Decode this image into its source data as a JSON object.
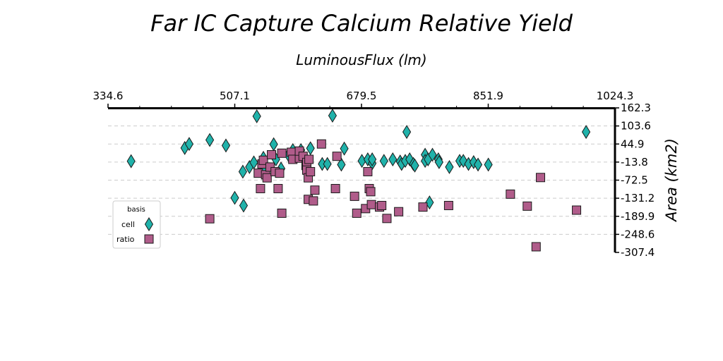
{
  "chart_data": {
    "type": "scatter",
    "title": "Far IC Capture Calcium Relative Yield",
    "xlabel": "LuminousFlux (lm)",
    "ylabel": "Area (km2)",
    "xlim": [
      334.6,
      1024.3
    ],
    "ylim": [
      -307.4,
      162.3
    ],
    "x_ticks": [
      "334.6",
      "507.1",
      "679.5",
      "851.9",
      "1024.3"
    ],
    "y_ticks": [
      "162.3",
      "103.6",
      "44.9",
      "-13.8",
      "-72.5",
      "-131.2",
      "-189.9",
      "-248.6",
      "-307.4"
    ],
    "x_axis_position": "top",
    "y_axis_position": "right",
    "grid": "horizontal dashed",
    "legend": {
      "title": "basis",
      "position": "left-middle"
    },
    "series": [
      {
        "name": "cell",
        "marker": "diamond",
        "color": "#20b2aa",
        "points": [
          [
            366,
            -11
          ],
          [
            439,
            32
          ],
          [
            445,
            45
          ],
          [
            473,
            58
          ],
          [
            495,
            40
          ],
          [
            507,
            -130
          ],
          [
            518,
            -45
          ],
          [
            519,
            -155
          ],
          [
            527,
            -30
          ],
          [
            533,
            -15
          ],
          [
            537,
            135
          ],
          [
            546,
            0
          ],
          [
            547,
            -33
          ],
          [
            560,
            44
          ],
          [
            563,
            -5
          ],
          [
            570,
            -35
          ],
          [
            580,
            9
          ],
          [
            586,
            25
          ],
          [
            597,
            25
          ],
          [
            610,
            31
          ],
          [
            626,
            -20
          ],
          [
            633,
            -20
          ],
          [
            640,
            137
          ],
          [
            652,
            -22
          ],
          [
            656,
            30
          ],
          [
            680,
            -10
          ],
          [
            688,
            -5
          ],
          [
            694,
            -18
          ],
          [
            694,
            -5
          ],
          [
            710,
            -10
          ],
          [
            722,
            -5
          ],
          [
            732,
            -12
          ],
          [
            734,
            -20
          ],
          [
            739,
            -10
          ],
          [
            741,
            84
          ],
          [
            745,
            -5
          ],
          [
            750,
            -20
          ],
          [
            752,
            -25
          ],
          [
            766,
            10
          ],
          [
            766,
            -10
          ],
          [
            770,
            -5
          ],
          [
            772,
            -145
          ],
          [
            776,
            10
          ],
          [
            784,
            -5
          ],
          [
            785,
            -14
          ],
          [
            799,
            -30
          ],
          [
            813,
            -10
          ],
          [
            818,
            -10
          ],
          [
            825,
            -20
          ],
          [
            832,
            -14
          ],
          [
            838,
            -22
          ],
          [
            852,
            -22
          ],
          [
            985,
            84
          ]
        ]
      },
      {
        "name": "ratio",
        "marker": "square",
        "color": "#b05c8a",
        "points": [
          [
            473,
            -198
          ],
          [
            539,
            -50
          ],
          [
            542,
            -100
          ],
          [
            544,
            -20
          ],
          [
            546,
            -8
          ],
          [
            549,
            -55
          ],
          [
            551,
            -65
          ],
          [
            555,
            -30
          ],
          [
            557,
            10
          ],
          [
            562,
            -45
          ],
          [
            566,
            -100
          ],
          [
            568,
            -50
          ],
          [
            571,
            15
          ],
          [
            571,
            -180
          ],
          [
            584,
            18
          ],
          [
            586,
            -5
          ],
          [
            595,
            -1
          ],
          [
            595,
            22
          ],
          [
            600,
            5
          ],
          [
            604,
            -25
          ],
          [
            605,
            -15
          ],
          [
            605,
            -40
          ],
          [
            607,
            -65
          ],
          [
            607,
            -135
          ],
          [
            608,
            -5
          ],
          [
            610,
            -45
          ],
          [
            614,
            -140
          ],
          [
            616,
            -105
          ],
          [
            625,
            45
          ],
          [
            644,
            -100
          ],
          [
            646,
            5
          ],
          [
            670,
            -125
          ],
          [
            673,
            -180
          ],
          [
            685,
            -165
          ],
          [
            688,
            -45
          ],
          [
            690,
            -100
          ],
          [
            692,
            -110
          ],
          [
            693,
            -152
          ],
          [
            704,
            -160
          ],
          [
            707,
            -155
          ],
          [
            714,
            -197
          ],
          [
            730,
            -175
          ],
          [
            763,
            -160
          ],
          [
            798,
            -155
          ],
          [
            882,
            -118
          ],
          [
            905,
            -157
          ],
          [
            917,
            -289
          ],
          [
            923,
            -64
          ],
          [
            972,
            -170
          ]
        ]
      }
    ]
  }
}
